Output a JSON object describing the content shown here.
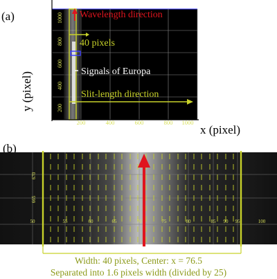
{
  "figure": {
    "panel_a": {
      "label": "(a)",
      "y_axis_label": "y (pixel)",
      "x_axis_label": "x (pixel)",
      "x_ticks": [
        "200",
        "400",
        "600",
        "800",
        "1000"
      ],
      "y_ticks": [
        "200",
        "400",
        "600",
        "800",
        "1000"
      ],
      "annotation_wavelength": "Wavelength direction",
      "annotation_width": "40 pixels",
      "annotation_signal": "Signals of Europa",
      "annotation_slit": "Slit-length direction"
    },
    "panel_b": {
      "label": "(b)",
      "y_ticks": [
        "670",
        "665"
      ],
      "x_ticks": [
        "50",
        "55",
        "60",
        "65",
        "70",
        "75",
        "80",
        "85",
        "90",
        "95",
        "100"
      ],
      "caption_line1": "Width: 40 pixels, Center: x = 76.5",
      "caption_line2": "Separated into 1.6 pixels width (divided by 25)"
    },
    "colors": {
      "annotation_yellow": "#c8d22a",
      "wavelength_red": "#e0141e",
      "caption_olive": "#8c9a1a",
      "box_blue": "#3a3aff"
    }
  }
}
